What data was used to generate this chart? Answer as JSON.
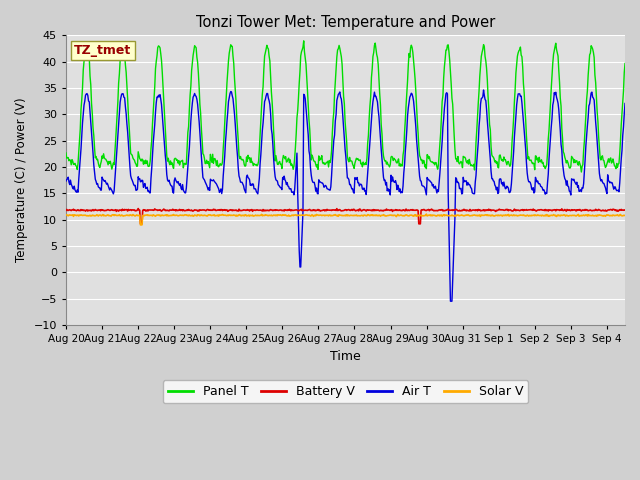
{
  "title": "Tonzi Tower Met: Temperature and Power",
  "xlabel": "Time",
  "ylabel": "Temperature (C) / Power (V)",
  "ylim": [
    -10,
    45
  ],
  "yticks": [
    -10,
    -5,
    0,
    5,
    10,
    15,
    20,
    25,
    30,
    35,
    40,
    45
  ],
  "colors": {
    "panel_t": "#00dd00",
    "battery_v": "#dd0000",
    "air_t": "#0000dd",
    "solar_v": "#ffaa00"
  },
  "legend_labels": [
    "Panel T",
    "Battery V",
    "Air T",
    "Solar V"
  ],
  "annotation_text": "TZ_tmet",
  "annotation_color": "#990000",
  "annotation_bg": "#ffffcc",
  "annotation_border": "#999933",
  "fig_facecolor": "#d0d0d0",
  "ax_facecolor": "#e0e0e0",
  "grid_color": "#ffffff",
  "x_tick_labels": [
    "Aug 20",
    "Aug 21",
    "Aug 22",
    "Aug 23",
    "Aug 24",
    "Aug 25",
    "Aug 26",
    "Aug 27",
    "Aug 28",
    "Aug 29",
    "Aug 30",
    "Aug 31",
    "Sep 1",
    "Sep 2",
    "Sep 3",
    "Sep 4"
  ]
}
